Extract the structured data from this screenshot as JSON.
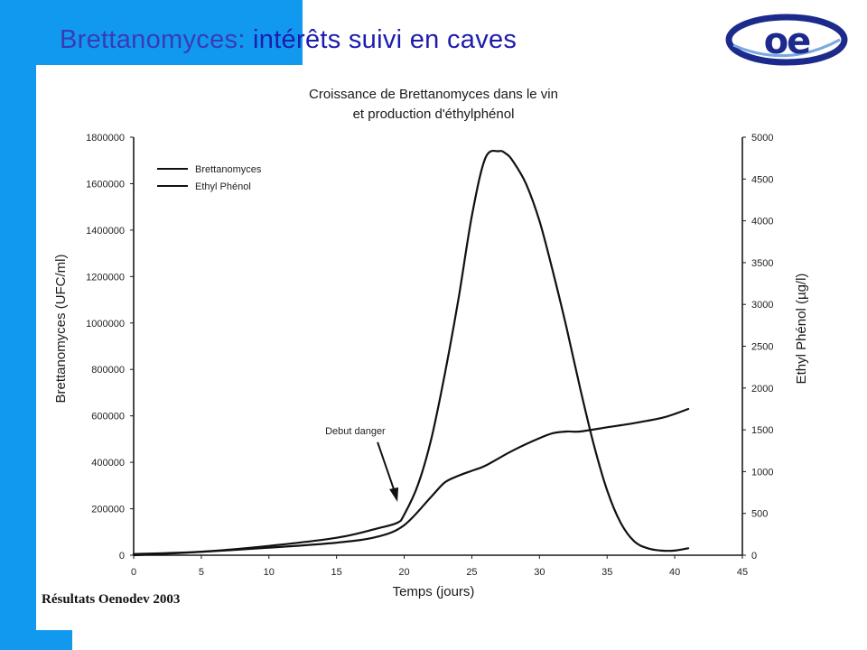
{
  "slide": {
    "title_part1": "Brettanomyces:",
    "title_part2": " intérêts suivi en caves",
    "logo_text": "oe",
    "source_credit": "Résultats Oenodev 2003",
    "colors": {
      "accent": "#1199f0",
      "title": "#1c1cae",
      "logo_blue": "#1c2a8c"
    }
  },
  "chart_data": {
    "type": "line",
    "title": [
      "Croissance de Brettanomyces dans le vin",
      "et production d'éthylphénol"
    ],
    "xlabel": "Temps (jours)",
    "ylabel_left": "Brettanomyces (UFC/ml)",
    "ylabel_right": "Ethyl Phénol (µg/l)",
    "xlim": [
      0,
      45
    ],
    "ylim_left": [
      0,
      1800000
    ],
    "ylim_right": [
      0,
      5000
    ],
    "x_ticks": [
      "0",
      "5",
      "10",
      "15",
      "20",
      "25",
      "30",
      "35",
      "40",
      "45"
    ],
    "y_left_ticks": [
      "0",
      "200000",
      "400000",
      "600000",
      "800000",
      "1000000",
      "1200000",
      "1400000",
      "1600000",
      "1800000"
    ],
    "y_right_ticks": [
      "0",
      "500",
      "1000",
      "1500",
      "2000",
      "2500",
      "3000",
      "3500",
      "4000",
      "4500",
      "5000"
    ],
    "legend": [
      "Brettanomyces",
      "Ethyl Phénol"
    ],
    "legend_placement": "top-left",
    "grid": false,
    "annotation": {
      "text": "Debut danger",
      "x": 19.5,
      "y": 230000
    },
    "series": [
      {
        "name": "Brettanomyces",
        "axis": "left",
        "x": [
          0,
          5,
          10,
          15,
          18,
          19.5,
          20,
          21,
          22,
          23,
          24,
          25,
          26,
          27,
          27.5,
          28,
          29,
          30,
          31,
          32,
          33,
          34,
          35,
          36,
          37,
          38,
          39,
          40,
          41
        ],
        "y": [
          5000,
          15000,
          40000,
          75000,
          115000,
          140000,
          175000,
          300000,
          500000,
          780000,
          1100000,
          1460000,
          1710000,
          1740000,
          1730000,
          1700000,
          1600000,
          1440000,
          1220000,
          980000,
          720000,
          480000,
          280000,
          140000,
          60000,
          30000,
          20000,
          20000,
          30000
        ]
      },
      {
        "name": "Ethyl Phénol",
        "axis": "right",
        "x": [
          0,
          5,
          10,
          15,
          18,
          20,
          22,
          23,
          24,
          25,
          26,
          28,
          30,
          31,
          32,
          33,
          35,
          37,
          39,
          40,
          41
        ],
        "y": [
          0,
          40,
          90,
          150,
          220,
          360,
          700,
          870,
          950,
          1010,
          1070,
          1250,
          1400,
          1460,
          1480,
          1480,
          1530,
          1580,
          1640,
          1690,
          1750
        ]
      }
    ]
  }
}
